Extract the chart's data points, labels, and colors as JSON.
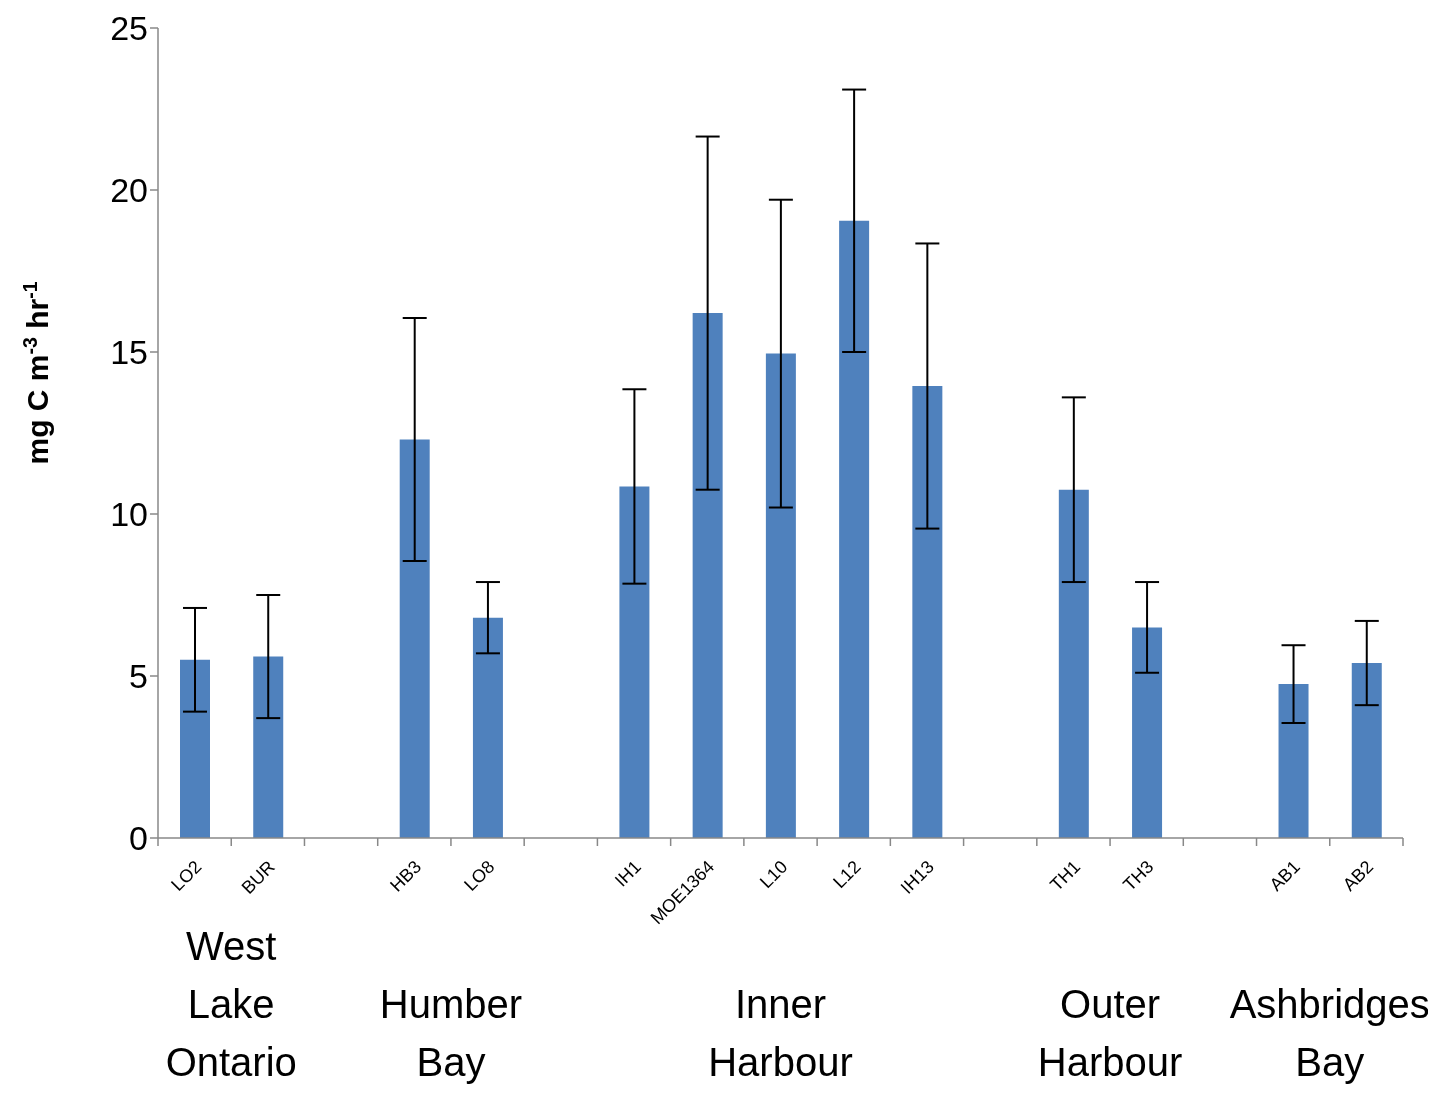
{
  "chart_data": {
    "type": "bar",
    "ylabel": "mg C m$^{-3}$ hr$^{-1}$",
    "categories": [
      "LO2",
      "BUR",
      null,
      "HB3",
      "LO8",
      null,
      "IH1",
      "MOE1364",
      "L10",
      "L12",
      "IH13",
      null,
      "TH1",
      "TH3",
      null,
      "AB1",
      "AB2"
    ],
    "values": [
      5.5,
      5.6,
      null,
      12.3,
      6.8,
      null,
      10.85,
      16.2,
      14.95,
      19.05,
      13.95,
      null,
      10.75,
      6.5,
      null,
      4.75,
      5.4
    ],
    "errors": [
      1.6,
      1.9,
      null,
      3.75,
      1.1,
      null,
      3.0,
      5.45,
      4.75,
      4.05,
      4.4,
      null,
      2.85,
      1.4,
      null,
      1.2,
      1.3
    ],
    "color": "#4f81bd",
    "ylim": [
      0,
      25
    ],
    "yticks": [
      0,
      5,
      10,
      15,
      20,
      25
    ],
    "grid": false,
    "legend": false,
    "annotations": [
      "West Lake Ontario",
      "Humber Bay",
      "Inner Harbour",
      "Outer Harbour",
      "Ashbridges Bay"
    ]
  }
}
